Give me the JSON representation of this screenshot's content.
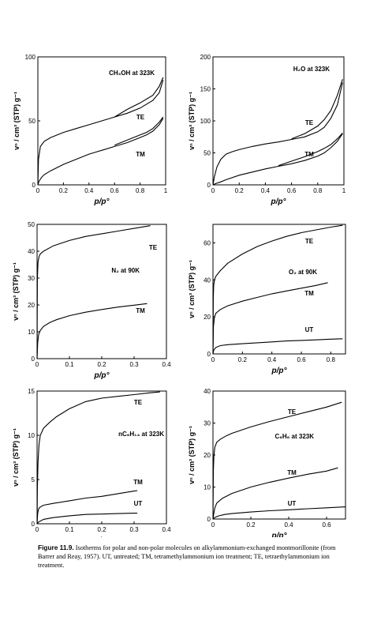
{
  "chart_data": [
    {
      "type": "line",
      "panel": "top-left",
      "annotation": "CH₃OH at 323K",
      "xlabel": "p/p°",
      "ylabel": "vⁿ / cm³ (STP) g⁻¹",
      "xlim": [
        0,
        1.0
      ],
      "ylim": [
        0,
        100
      ],
      "xticks": [
        "0",
        "0.2",
        "0.4",
        "0.6",
        "0.8",
        "1"
      ],
      "yticks": [
        "0",
        "50",
        "100"
      ],
      "series": [
        {
          "name": "TE",
          "x": [
            0,
            0.005,
            0.02,
            0.05,
            0.1,
            0.2,
            0.3,
            0.4,
            0.5,
            0.6,
            0.7,
            0.8,
            0.9,
            0.95,
            0.98
          ],
          "y": [
            0,
            20,
            30,
            34,
            37,
            41,
            44,
            47,
            50,
            53,
            56,
            60,
            66,
            72,
            82
          ]
        },
        {
          "name": "TE",
          "x": [
            0.6,
            0.7,
            0.8,
            0.9,
            0.95,
            0.98
          ],
          "y": [
            53,
            59,
            64,
            70,
            77,
            84
          ]
        },
        {
          "name": "TM",
          "x": [
            0,
            0.01,
            0.03,
            0.05,
            0.1,
            0.2,
            0.3,
            0.4,
            0.5,
            0.6,
            0.7,
            0.8,
            0.85,
            0.9,
            0.95,
            0.98
          ],
          "y": [
            0,
            3,
            6,
            8,
            11,
            16,
            20,
            24,
            27,
            30,
            33,
            37,
            39,
            42,
            47,
            52
          ]
        },
        {
          "name": "TM",
          "x": [
            0.6,
            0.7,
            0.8,
            0.85,
            0.9,
            0.95,
            0.98
          ],
          "y": [
            31,
            35,
            39,
            41,
            44,
            49,
            53
          ]
        }
      ]
    },
    {
      "type": "line",
      "panel": "top-right",
      "annotation": "H₂O at 323K",
      "xlabel": "p/p°",
      "ylabel": "vⁿ / cm³ (STP) g⁻¹",
      "xlim": [
        0,
        1.0
      ],
      "ylim": [
        0,
        200
      ],
      "xticks": [
        "0",
        "0.2",
        "0.4",
        "0.6",
        "0.8",
        "1"
      ],
      "yticks": [
        "0",
        "50",
        "100",
        "150",
        "200"
      ],
      "series": [
        {
          "name": "TE",
          "x": [
            0,
            0.01,
            0.03,
            0.06,
            0.1,
            0.15,
            0.2,
            0.3,
            0.4,
            0.5,
            0.6,
            0.7,
            0.8,
            0.85,
            0.9,
            0.95,
            0.99
          ],
          "y": [
            0,
            12,
            28,
            40,
            48,
            52,
            55,
            60,
            64,
            67,
            71,
            75,
            83,
            90,
            104,
            125,
            160
          ]
        },
        {
          "name": "TE",
          "x": [
            0.6,
            0.7,
            0.8,
            0.85,
            0.9,
            0.95,
            0.99
          ],
          "y": [
            72,
            80,
            92,
            102,
            116,
            140,
            165
          ]
        },
        {
          "name": "TM",
          "x": [
            0,
            0.02,
            0.05,
            0.1,
            0.2,
            0.3,
            0.4,
            0.5,
            0.6,
            0.7,
            0.8,
            0.85,
            0.9,
            0.95,
            0.99
          ],
          "y": [
            0,
            2,
            4,
            8,
            15,
            20,
            25,
            29,
            33,
            38,
            45,
            50,
            58,
            68,
            80
          ]
        },
        {
          "name": "TM",
          "x": [
            0.5,
            0.6,
            0.7,
            0.8,
            0.85,
            0.9,
            0.95,
            0.99
          ],
          "y": [
            30,
            37,
            44,
            52,
            57,
            63,
            72,
            81
          ]
        }
      ]
    },
    {
      "type": "line",
      "panel": "middle-left",
      "annotation": "N₂ at 90K",
      "xlabel": "p/p°",
      "ylabel": "vⁿ / cm³ (STP) g⁻¹",
      "xlim": [
        0,
        0.4
      ],
      "ylim": [
        0,
        50
      ],
      "xticks": [
        "0",
        "0.1",
        "0.2",
        "0.3",
        "0.4"
      ],
      "yticks": [
        "0",
        "10",
        "20",
        "30",
        "40",
        "50"
      ],
      "series": [
        {
          "name": "TE",
          "x": [
            0,
            0.001,
            0.003,
            0.006,
            0.01,
            0.02,
            0.05,
            0.1,
            0.15,
            0.2,
            0.25,
            0.3,
            0.35
          ],
          "y": [
            0,
            30,
            36,
            38,
            39,
            40,
            42,
            44,
            45.5,
            46.5,
            47.5,
            48.5,
            49.5
          ]
        },
        {
          "name": "TM",
          "x": [
            0,
            0.002,
            0.005,
            0.01,
            0.02,
            0.04,
            0.06,
            0.1,
            0.15,
            0.2,
            0.25,
            0.3,
            0.34
          ],
          "y": [
            0,
            6,
            9,
            10.5,
            12,
            13.5,
            14.5,
            16,
            17.3,
            18.3,
            19.2,
            19.9,
            20.5
          ]
        }
      ]
    },
    {
      "type": "line",
      "panel": "middle-right",
      "annotation": "O₂ at 90K",
      "xlabel": "p/p°",
      "ylabel": "vⁿ / cm³ (STP) g⁻¹",
      "xlim": [
        0,
        0.9
      ],
      "ylim": [
        0,
        70
      ],
      "xticks": [
        "0",
        "0.2",
        "0.4",
        "0.6",
        "0.8"
      ],
      "yticks": [
        "0",
        "20",
        "40",
        "60"
      ],
      "series": [
        {
          "name": "TE",
          "x": [
            0,
            0.002,
            0.005,
            0.01,
            0.02,
            0.05,
            0.1,
            0.2,
            0.3,
            0.4,
            0.5,
            0.6,
            0.7,
            0.8,
            0.88
          ],
          "y": [
            0,
            30,
            37,
            40,
            42,
            45,
            49,
            54,
            58,
            61,
            63.5,
            65.5,
            67,
            68.5,
            69.5
          ]
        },
        {
          "name": "TM",
          "x": [
            0,
            0.003,
            0.01,
            0.02,
            0.05,
            0.1,
            0.2,
            0.3,
            0.4,
            0.5,
            0.6,
            0.7,
            0.78
          ],
          "y": [
            0,
            15,
            20,
            22,
            24,
            26,
            28.5,
            30.5,
            32.5,
            34,
            35.5,
            37,
            38.5
          ]
        },
        {
          "name": "UT",
          "x": [
            0,
            0.005,
            0.02,
            0.05,
            0.1,
            0.2,
            0.3,
            0.4,
            0.5,
            0.6,
            0.7,
            0.8,
            0.88
          ],
          "y": [
            0,
            2,
            3.5,
            4.5,
            5,
            5.5,
            6,
            6.5,
            7,
            7.3,
            7.6,
            8,
            8.2
          ]
        }
      ]
    },
    {
      "type": "line",
      "panel": "bottom-left",
      "annotation": "nC₆H₁₄ at 323K",
      "xlabel": "p/p°",
      "ylabel": "vⁿ / cm³ (STP) g⁻¹",
      "xlim": [
        0,
        0.4
      ],
      "ylim": [
        0,
        15
      ],
      "xticks": [
        "0",
        "0.1",
        "0.2",
        "0.3",
        "0.4"
      ],
      "yticks": [
        "0",
        "5",
        "10",
        "15"
      ],
      "series": [
        {
          "name": "TE",
          "x": [
            0,
            0.001,
            0.003,
            0.006,
            0.01,
            0.02,
            0.04,
            0.06,
            0.1,
            0.15,
            0.2,
            0.25,
            0.3,
            0.35,
            0.38
          ],
          "y": [
            0,
            4,
            7,
            9,
            10,
            10.8,
            11.5,
            12.1,
            13,
            13.8,
            14.2,
            14.4,
            14.6,
            14.8,
            14.9
          ]
        },
        {
          "name": "TM",
          "x": [
            0,
            0.002,
            0.005,
            0.01,
            0.02,
            0.05,
            0.1,
            0.15,
            0.2,
            0.25,
            0.3,
            0.31
          ],
          "y": [
            0,
            1.2,
            1.7,
            1.9,
            2.1,
            2.3,
            2.6,
            2.9,
            3.1,
            3.4,
            3.7,
            3.75
          ]
        },
        {
          "name": "UT",
          "x": [
            0,
            0.005,
            0.02,
            0.05,
            0.1,
            0.15,
            0.2,
            0.25,
            0.3,
            0.31
          ],
          "y": [
            0,
            0.2,
            0.5,
            0.7,
            0.9,
            1.05,
            1.1,
            1.15,
            1.2,
            1.2
          ]
        }
      ]
    },
    {
      "type": "line",
      "panel": "bottom-right",
      "annotation": "C₆H₆ at 323K",
      "xlabel": "p/p°",
      "ylabel": "vⁿ / cm³ (STP) g⁻¹",
      "xlim": [
        0,
        0.7
      ],
      "ylim": [
        0,
        40
      ],
      "xticks": [
        "0",
        "0.2",
        "0.4",
        "0.6"
      ],
      "yticks": [
        "0",
        "10",
        "20",
        "30",
        "40"
      ],
      "series": [
        {
          "name": "TE",
          "x": [
            0,
            0.002,
            0.005,
            0.01,
            0.02,
            0.04,
            0.07,
            0.1,
            0.2,
            0.3,
            0.4,
            0.5,
            0.6,
            0.68
          ],
          "y": [
            0,
            15,
            20,
            22.5,
            24,
            25,
            26,
            26.8,
            28.8,
            30.5,
            32,
            33.5,
            35,
            36.5
          ]
        },
        {
          "name": "TM",
          "x": [
            0,
            0.005,
            0.01,
            0.02,
            0.05,
            0.1,
            0.2,
            0.3,
            0.4,
            0.5,
            0.6,
            0.66
          ],
          "y": [
            0,
            2,
            3.5,
            5,
            6.5,
            8,
            10,
            11.5,
            12.8,
            14,
            15,
            16
          ]
        },
        {
          "name": "UT",
          "x": [
            0,
            0.01,
            0.03,
            0.06,
            0.1,
            0.2,
            0.3,
            0.4,
            0.5,
            0.6,
            0.7
          ],
          "y": [
            0,
            0.5,
            1,
            1.4,
            1.7,
            2.2,
            2.6,
            2.9,
            3.2,
            3.5,
            3.8
          ]
        }
      ]
    }
  ],
  "caption": {
    "label": "Figure 11.9.",
    "text": "Isotherms for polar and non-polar molecules on alkylammonium-exchanged montmorillonite (from Barrer and Reay, 1957). UT, untreated; TM, tetramethylammonium ion treatment; TE, tetraethylammonium ion treatment."
  }
}
